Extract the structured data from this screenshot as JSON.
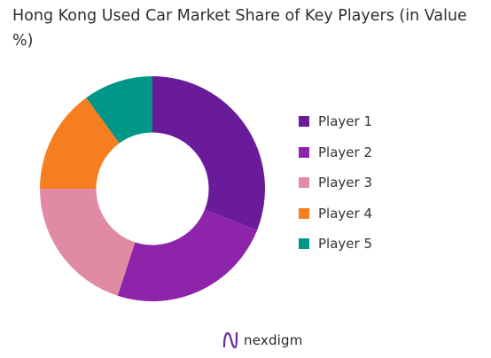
{
  "title": "Hong Kong Used Car Market Share of Key Players (in Value %)",
  "chart_data": {
    "type": "pie",
    "categories": [
      "Player 1",
      "Player 2",
      "Player 3",
      "Player 4",
      "Player 5"
    ],
    "values": [
      31,
      24,
      20,
      15,
      10
    ],
    "colors": [
      "#6a1b9a",
      "#8e24aa",
      "#e08aa3",
      "#f57f20",
      "#009688"
    ],
    "hole": 0.5,
    "legend": "right",
    "start": "top, clockwise"
  },
  "brand": {
    "name": "nexdigm",
    "color": "#6a2c91"
  }
}
